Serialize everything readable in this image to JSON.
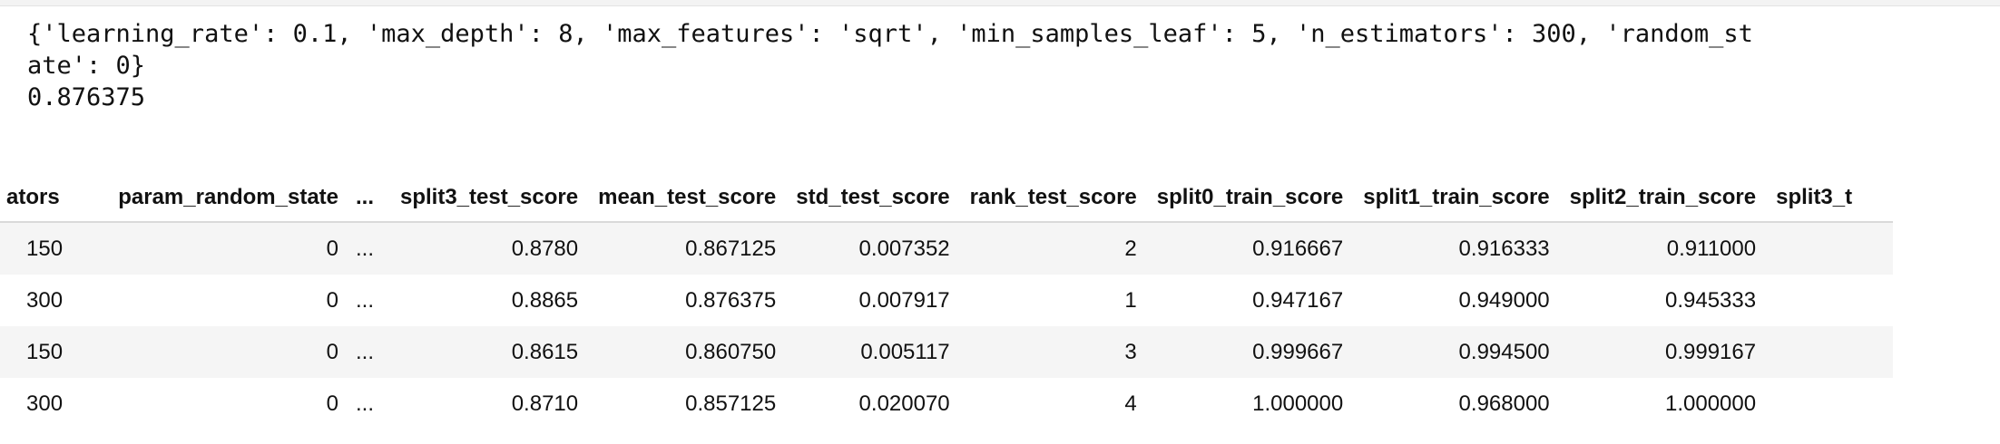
{
  "output": {
    "lines": [
      "{'learning_rate': 0.1, 'max_depth': 8, 'max_features': 'sqrt', 'min_samples_leaf': 5, 'n_estimators': 300, 'random_st",
      "ate': 0}",
      "0.876375"
    ]
  },
  "table": {
    "headers": [
      "ators",
      "param_random_state",
      "...",
      "split3_test_score",
      "mean_test_score",
      "std_test_score",
      "rank_test_score",
      "split0_train_score",
      "split1_train_score",
      "split2_train_score",
      "split3_t"
    ],
    "rows": [
      [
        "150",
        "0",
        "...",
        "0.8780",
        "0.867125",
        "0.007352",
        "2",
        "0.916667",
        "0.916333",
        "0.911000",
        ""
      ],
      [
        "300",
        "0",
        "...",
        "0.8865",
        "0.876375",
        "0.007917",
        "1",
        "0.947167",
        "0.949000",
        "0.945333",
        ""
      ],
      [
        "150",
        "0",
        "...",
        "0.8615",
        "0.860750",
        "0.005117",
        "3",
        "0.999667",
        "0.994500",
        "0.999167",
        ""
      ],
      [
        "300",
        "0",
        "...",
        "0.8710",
        "0.857125",
        "0.020070",
        "4",
        "1.000000",
        "0.968000",
        "1.000000",
        ""
      ]
    ]
  }
}
